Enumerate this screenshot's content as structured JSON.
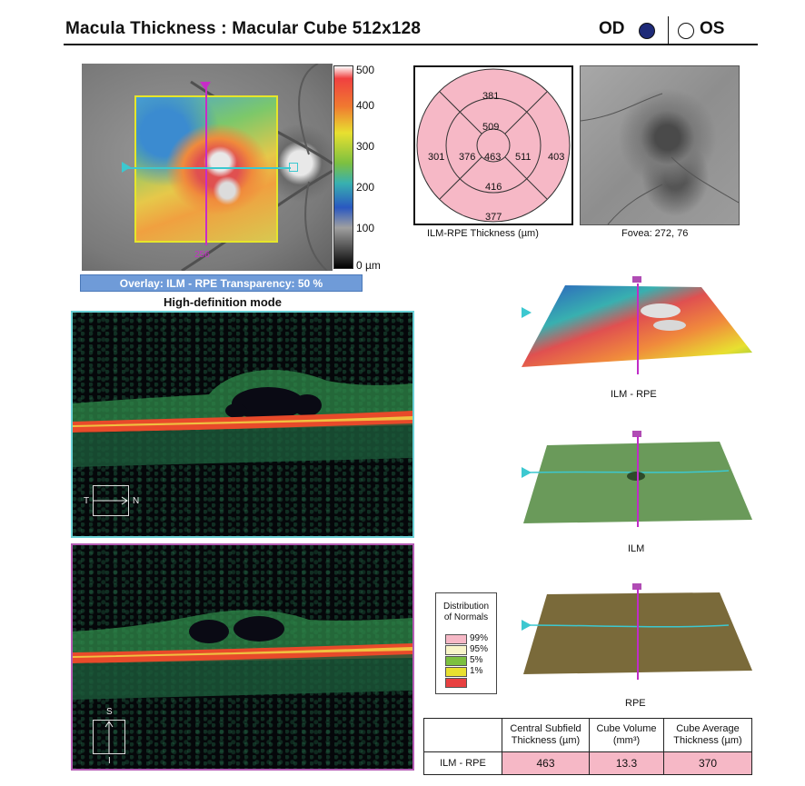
{
  "header": {
    "title": "Macula Thickness : Macular Cube 512x128",
    "eye_od": "OD",
    "eye_os": "OS",
    "selected_eye": "OD"
  },
  "fundus": {
    "scan_index": "256",
    "colorbar_ticks": [
      "500",
      "400",
      "300",
      "200",
      "100",
      "0 µm"
    ],
    "overlay_text": "Overlay: ILM - RPE  Transparency: 50 %",
    "mode_text": "High-definition mode"
  },
  "sector_map": {
    "caption": "ILM-RPE Thickness (µm)",
    "outer_superior": "381",
    "inner_superior": "509",
    "outer_nasal_left": "301",
    "inner_left": "376",
    "center": "463",
    "inner_right": "511",
    "outer_right": "403",
    "inner_inferior": "416",
    "outer_inferior": "377",
    "fill_color": "#f6b8c6"
  },
  "fovea": {
    "caption": "Fovea: 272, 76"
  },
  "bscan_h": {
    "left_label": "T",
    "right_label": "N"
  },
  "bscan_v": {
    "top_label": "S",
    "bottom_label": "I"
  },
  "surfaces": {
    "ilm_rpe": "ILM - RPE",
    "ilm": "ILM",
    "rpe": "RPE"
  },
  "legend": {
    "title": "Distribution of Normals",
    "items": [
      {
        "label": "99%",
        "color": "#f6b8c6"
      },
      {
        "label": "95%",
        "color": "#f8f4c8"
      },
      {
        "label": "5%",
        "color": "#7cc040"
      },
      {
        "label": "1%",
        "color": "#e8e030"
      },
      {
        "label": "",
        "color": "#e84040"
      }
    ]
  },
  "table": {
    "col1": "Central Subfield Thickness (µm)",
    "col2": "Cube Volume (mm³)",
    "col3": "Cube Average Thickness (µm)",
    "row_label": "ILM - RPE",
    "v1": "463",
    "v2": "13.3",
    "v3": "370"
  }
}
